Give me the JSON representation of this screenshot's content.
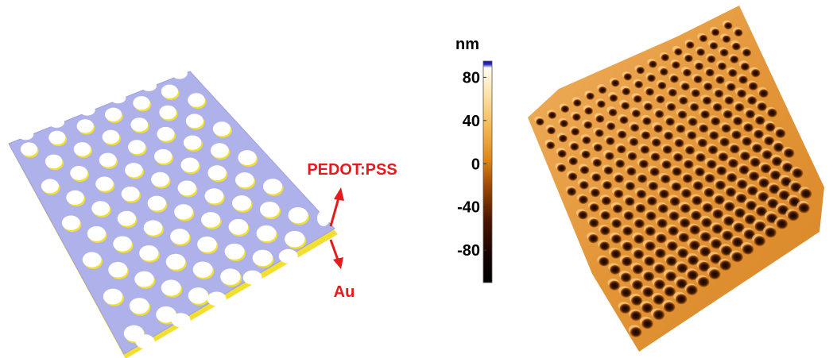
{
  "schematic": {
    "top_layer_label": "PEDOT:PSS",
    "bottom_layer_label": "Au",
    "label_color": "#e41a1c",
    "top_layer_color": "#aeb1ea",
    "bottom_layer_color": "#f2df2f"
  },
  "colorbar": {
    "unit": "nm",
    "ticks": [
      "80",
      "40",
      "0",
      "-40",
      "-80"
    ],
    "tick_values": [
      80,
      40,
      0,
      -40,
      -80
    ],
    "range": [
      -110,
      95
    ],
    "colormap": [
      "#000000",
      "#3a0a00",
      "#8a3a00",
      "#d87a10",
      "#f3b040",
      "#fbe2a0",
      "#fffef0",
      "#1010a0"
    ]
  },
  "afm_image": {
    "surface_color": "#e69a3c",
    "pore_color": "#1a0a00"
  }
}
